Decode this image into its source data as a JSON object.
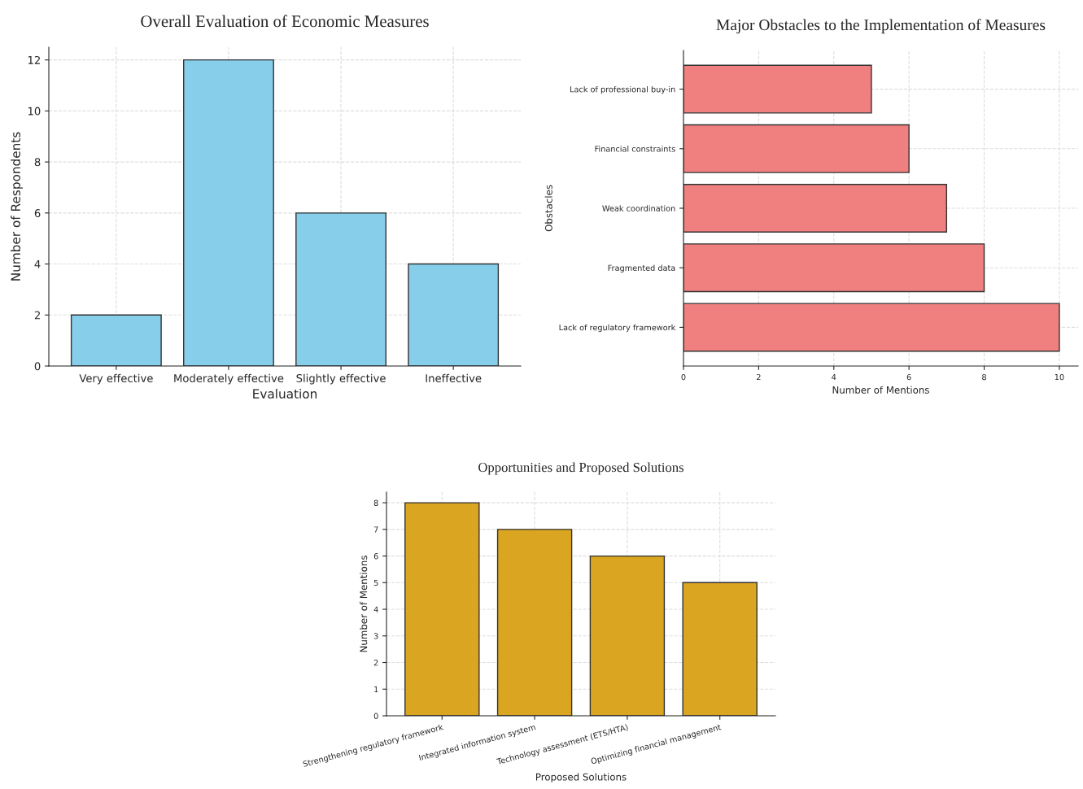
{
  "chart_data": [
    {
      "type": "bar",
      "title": "Overall Evaluation of Economic Measures",
      "xlabel": "Evaluation",
      "ylabel": "Number of Respondents",
      "categories": [
        "Very effective",
        "Moderately effective",
        "Slightly effective",
        "Ineffective"
      ],
      "values": [
        2,
        12,
        6,
        4
      ],
      "color": "#87ceeb",
      "ylim": [
        0,
        12.5
      ],
      "yticks": [
        0,
        2,
        4,
        6,
        8,
        10,
        12
      ],
      "grid": true
    },
    {
      "type": "bar",
      "orientation": "horizontal",
      "title": "Major Obstacles to the Implementation of Measures",
      "xlabel": "Number of Mentions",
      "ylabel": "Obstacles",
      "categories": [
        "Lack of professional buy-in",
        "Financial constraints",
        "Weak coordination",
        "Fragmented data",
        "Lack of regulatory framework"
      ],
      "values": [
        5,
        6,
        7,
        8,
        10
      ],
      "color": "#f08080",
      "xlim": [
        0,
        10.5
      ],
      "xticks": [
        0,
        2,
        4,
        6,
        8,
        10
      ],
      "grid": true
    },
    {
      "type": "bar",
      "title": "Opportunities and Proposed Solutions",
      "xlabel": "Proposed Solutions",
      "ylabel": "Number of Mentions",
      "categories": [
        "Strengthening regulatory framework",
        "Integrated information system",
        "Technology assessment (ETS/HTA)",
        "Optimizing financial management"
      ],
      "values": [
        8,
        7,
        6,
        5
      ],
      "color": "#daa520",
      "ylim": [
        0,
        8.4
      ],
      "yticks": [
        0,
        1,
        2,
        3,
        4,
        5,
        6,
        7,
        8
      ],
      "grid": true
    }
  ]
}
